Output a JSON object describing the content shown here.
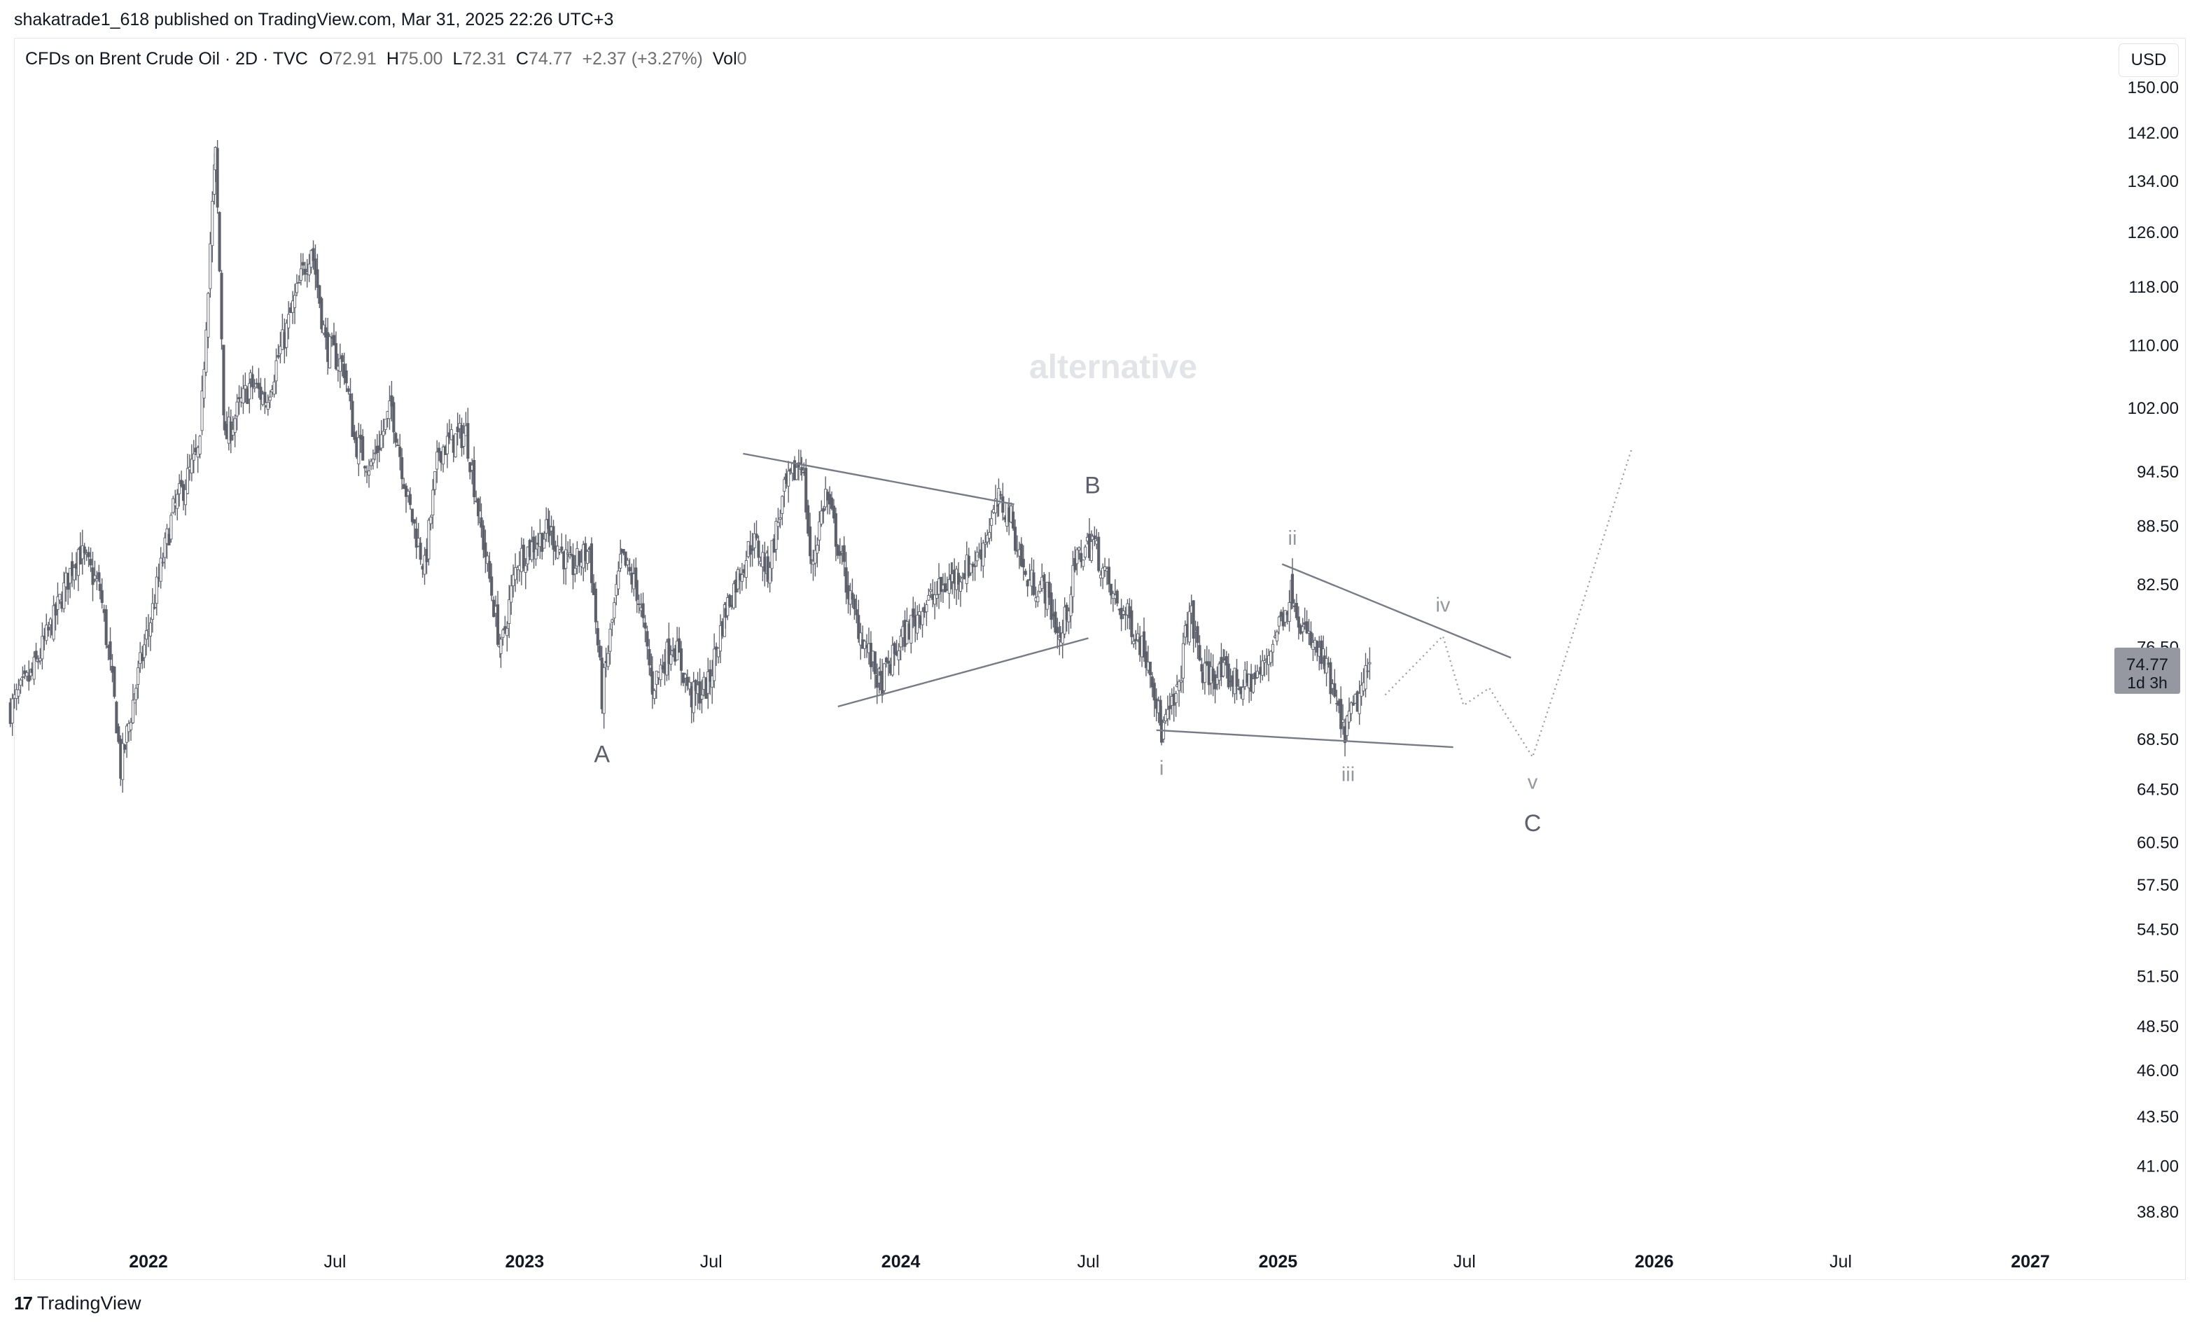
{
  "header": {
    "publisher_line": "shakatrade1_618 published on TradingView.com, Mar 31, 2025 22:26 UTC+3",
    "symbol": "CFDs on Brent Crude Oil · 2D · TVC",
    "open_label": "O",
    "open": "72.91",
    "high_label": "H",
    "high": "75.00",
    "low_label": "L",
    "low": "72.31",
    "close_label": "C",
    "close": "74.77",
    "change": "+2.37 (+3.27%)",
    "vol_label": "Vol",
    "vol": "0",
    "currency": "USD"
  },
  "footer": {
    "brand": "TradingView",
    "logo_glyph": "17"
  },
  "chart_data": {
    "type": "candlestick",
    "watermark": "alternative",
    "colors": {
      "up": "#ffffff",
      "down": "#5d606b",
      "wick": "#5d606b",
      "pattern": "#787b86",
      "price_tag": "#9598a1"
    },
    "y_scale": "log",
    "ylim": [
      36.5,
      155
    ],
    "y_ticks": [
      150.0,
      142.0,
      134.0,
      126.0,
      118.0,
      110.0,
      102.0,
      94.5,
      88.5,
      82.5,
      76.5,
      68.5,
      64.5,
      60.5,
      57.5,
      54.5,
      51.5,
      48.5,
      46.0,
      43.5,
      41.0,
      38.8
    ],
    "last_price": {
      "value": "74.77",
      "countdown": "1d 3h"
    },
    "x_ticks": [
      {
        "date": "2022-01",
        "label": "2022",
        "bold": true
      },
      {
        "date": "2022-07",
        "label": "Jul",
        "bold": false
      },
      {
        "date": "2023-01",
        "label": "2023",
        "bold": true
      },
      {
        "date": "2023-07",
        "label": "Jul",
        "bold": false
      },
      {
        "date": "2024-01",
        "label": "2024",
        "bold": true
      },
      {
        "date": "2024-07",
        "label": "Jul",
        "bold": false
      },
      {
        "date": "2025-01",
        "label": "2025",
        "bold": true
      },
      {
        "date": "2025-07",
        "label": "Jul",
        "bold": false
      },
      {
        "date": "2026-01",
        "label": "2026",
        "bold": true
      },
      {
        "date": "2026-07",
        "label": "Jul",
        "bold": false
      },
      {
        "date": "2027-01",
        "label": "2027",
        "bold": true
      }
    ],
    "price_path": [
      [
        "2021-08-20",
        71
      ],
      [
        "2021-09-10",
        74
      ],
      [
        "2021-10-01",
        79
      ],
      [
        "2021-10-25",
        86
      ],
      [
        "2021-11-15",
        82
      ],
      [
        "2021-12-01",
        70
      ],
      [
        "2021-12-05",
        66
      ],
      [
        "2021-12-20",
        73
      ],
      [
        "2022-01-05",
        80
      ],
      [
        "2022-01-25",
        90
      ],
      [
        "2022-02-20",
        97
      ],
      [
        "2022-03-07",
        138
      ],
      [
        "2022-03-16",
        98
      ],
      [
        "2022-04-10",
        105
      ],
      [
        "2022-04-25",
        103
      ],
      [
        "2022-05-15",
        112
      ],
      [
        "2022-06-08",
        124
      ],
      [
        "2022-06-22",
        110
      ],
      [
        "2022-07-10",
        107
      ],
      [
        "2022-07-20",
        98
      ],
      [
        "2022-08-05",
        95
      ],
      [
        "2022-08-25",
        102
      ],
      [
        "2022-09-10",
        91
      ],
      [
        "2022-09-26",
        84
      ],
      [
        "2022-10-10",
        97
      ],
      [
        "2022-11-05",
        99
      ],
      [
        "2022-11-20",
        88
      ],
      [
        "2022-12-09",
        76
      ],
      [
        "2022-12-25",
        85
      ],
      [
        "2023-01-25",
        88
      ],
      [
        "2023-02-15",
        84
      ],
      [
        "2023-03-05",
        86
      ],
      [
        "2023-03-17",
        72
      ],
      [
        "2023-04-05",
        85
      ],
      [
        "2023-04-20",
        82
      ],
      [
        "2023-05-05",
        73
      ],
      [
        "2023-05-25",
        77
      ],
      [
        "2023-06-12",
        72
      ],
      [
        "2023-06-28",
        73
      ],
      [
        "2023-07-15",
        80
      ],
      [
        "2023-08-10",
        87
      ],
      [
        "2023-08-25",
        84
      ],
      [
        "2023-09-10",
        92
      ],
      [
        "2023-09-27",
        96
      ],
      [
        "2023-10-06",
        84
      ],
      [
        "2023-10-20",
        92
      ],
      [
        "2023-11-15",
        80
      ],
      [
        "2023-12-12",
        73
      ],
      [
        "2024-01-01",
        77
      ],
      [
        "2024-01-20",
        80
      ],
      [
        "2024-02-20",
        83
      ],
      [
        "2024-03-15",
        85
      ],
      [
        "2024-04-05",
        91
      ],
      [
        "2024-04-15",
        90
      ],
      [
        "2024-05-01",
        83
      ],
      [
        "2024-05-20",
        82
      ],
      [
        "2024-06-04",
        77
      ],
      [
        "2024-06-20",
        85
      ],
      [
        "2024-07-05",
        87
      ],
      [
        "2024-07-25",
        81
      ],
      [
        "2024-08-10",
        79
      ],
      [
        "2024-08-30",
        75
      ],
      [
        "2024-09-10",
        69
      ],
      [
        "2024-09-25",
        72
      ],
      [
        "2024-10-07",
        80
      ],
      [
        "2024-10-20",
        74
      ],
      [
        "2024-11-10",
        74
      ],
      [
        "2024-11-28",
        73
      ],
      [
        "2024-12-15",
        74
      ],
      [
        "2025-01-15",
        82
      ],
      [
        "2025-01-25",
        78
      ],
      [
        "2025-02-15",
        75
      ],
      [
        "2025-03-05",
        69
      ],
      [
        "2025-03-11",
        70
      ],
      [
        "2025-03-25",
        73
      ],
      [
        "2025-03-31",
        74.77
      ]
    ],
    "trendlines": [
      {
        "from": [
          "2023-08-01",
          96.5
        ],
        "to": [
          "2024-04-20",
          90.8
        ]
      },
      {
        "from": [
          "2023-11-01",
          71.2
        ],
        "to": [
          "2024-07-01",
          77.3
        ]
      },
      {
        "from": [
          "2025-01-05",
          84.5
        ],
        "to": [
          "2025-08-15",
          75.5
        ]
      },
      {
        "from": [
          "2024-09-05",
          69.2
        ],
        "to": [
          "2025-06-20",
          67.8
        ]
      }
    ],
    "projection": [
      [
        "2025-04-15",
        72.2
      ],
      [
        "2025-06-10",
        77.5
      ],
      [
        "2025-06-30",
        71.3
      ],
      [
        "2025-07-25",
        72.8
      ],
      [
        "2025-09-05",
        67.0
      ],
      [
        "2025-10-05",
        75.0
      ],
      [
        "2025-11-15",
        88.0
      ],
      [
        "2025-12-10",
        97.0
      ]
    ],
    "wave_labels": [
      {
        "text": "A",
        "date": "2023-03-17",
        "price": 66.6,
        "tone": "dark",
        "size": "large"
      },
      {
        "text": "B",
        "date": "2024-07-05",
        "price": 92.0,
        "tone": "dark",
        "size": "large"
      },
      {
        "text": "i",
        "date": "2024-09-10",
        "price": 65.6,
        "tone": "light",
        "size": "small"
      },
      {
        "text": "ii",
        "date": "2025-01-15",
        "price": 86.5,
        "tone": "light",
        "size": "small"
      },
      {
        "text": "iii",
        "date": "2025-03-10",
        "price": 65.1,
        "tone": "light",
        "size": "small"
      },
      {
        "text": "iv",
        "date": "2025-06-10",
        "price": 79.8,
        "tone": "light",
        "size": "small"
      },
      {
        "text": "v",
        "date": "2025-09-05",
        "price": 64.5,
        "tone": "light",
        "size": "small"
      },
      {
        "text": "C",
        "date": "2025-09-05",
        "price": 61.3,
        "tone": "dark",
        "size": "large"
      }
    ]
  }
}
